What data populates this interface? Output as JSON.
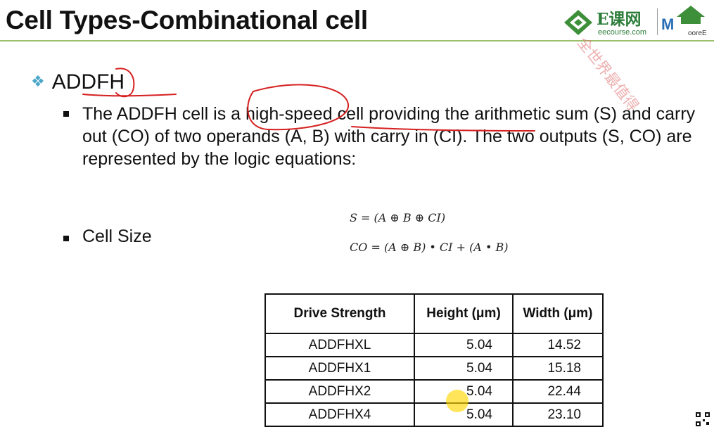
{
  "slide": {
    "title": "Cell Types-Combinational cell",
    "heading": "ADDFH",
    "heading_bullet_icon": "diamond-bullet-icon",
    "paragraph": "The ADDFH cell is a high-speed cell providing the arithmetic sum (S) and carry out (CO) of two operands (A, B) with carry in (CI). The two outputs (S, CO) are represented by the logic equations:",
    "cell_size_label": "Cell Size",
    "equations": [
      "S = (A ⊕ B ⊕ CI)",
      "CO = (A ⊕ B) • CI + (A • B)"
    ]
  },
  "logo": {
    "brand": "E课网",
    "brand_sub": "eecourse.com",
    "partner": "M",
    "partner_sub": "ooreE",
    "watermark": "全世界最值得"
  },
  "table": {
    "headers": [
      "Drive Strength",
      "Height (μm)",
      "Width (μm)"
    ],
    "rows": [
      [
        "ADDFHXL",
        "5.04",
        "14.52"
      ],
      [
        "ADDFHX1",
        "5.04",
        "15.18"
      ],
      [
        "ADDFHX2",
        "5.04",
        "22.44"
      ],
      [
        "ADDFHX4",
        "5.04",
        "23.10"
      ]
    ]
  },
  "colors": {
    "accent_green": "#9cbf6a",
    "brand_green": "#2d7d3a",
    "annotation_red": "#d62020",
    "diamond_blue": "#4aa6c8",
    "pointer_yellow": "#ffd700"
  }
}
